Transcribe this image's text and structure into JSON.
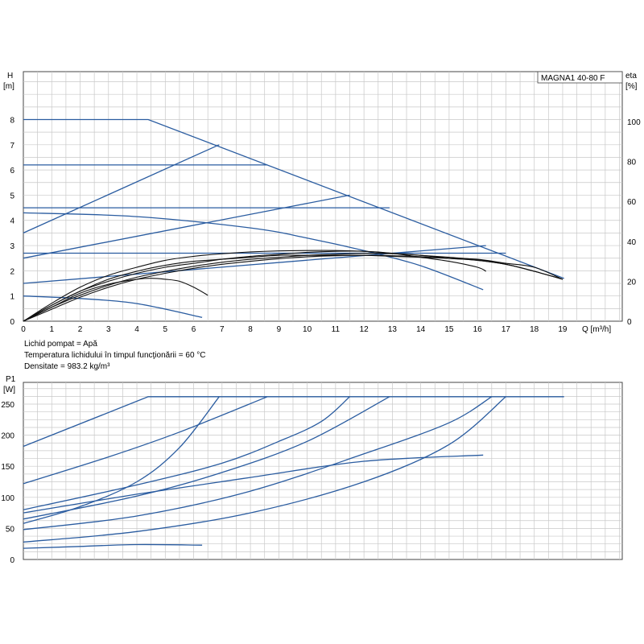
{
  "chart_data": [
    {
      "type": "line",
      "title": "MAGNA1 40-80 F",
      "xlabel": "Q [m³/h]",
      "ylabel_line1": "H",
      "ylabel_line2": "[m]",
      "y2label_line1": "eta",
      "y2label_line2": "[%]",
      "xlim": [
        0,
        21.1
      ],
      "ylim": [
        0,
        9.9
      ],
      "y2lim": [
        0,
        125
      ],
      "x_ticks": [
        0,
        1,
        2,
        3,
        4,
        5,
        6,
        7,
        8,
        9,
        10,
        11,
        12,
        13,
        14,
        15,
        16,
        17,
        18,
        19
      ],
      "y_ticks": [
        0,
        1,
        2,
        3,
        4,
        5,
        6,
        7,
        8
      ],
      "y2_ticks": [
        0,
        20,
        40,
        60,
        80,
        100
      ],
      "grid": true,
      "notes": [
        "Lichid pompat = Apă",
        "Temperatura lichidului în timpul funcţionării = 60 °C",
        "Densitate = 983.2 kg/m³"
      ],
      "head_curves": [
        {
          "color": "#2a5ca0",
          "points": [
            [
              0,
              8.0
            ],
            [
              4.4,
              8.0
            ],
            [
              19.05,
              1.7
            ]
          ]
        },
        {
          "color": "#2a5ca0",
          "points": [
            [
              0,
              6.2
            ],
            [
              8.6,
              6.2
            ]
          ]
        },
        {
          "color": "#2a5ca0",
          "points": [
            [
              0,
              4.5
            ],
            [
              12.9,
              4.5
            ]
          ]
        },
        {
          "color": "#2a5ca0",
          "points": [
            [
              0,
              2.7
            ],
            [
              17.0,
              2.7
            ]
          ]
        },
        {
          "color": "#2a5ca0",
          "points": [
            [
              0,
              3.5
            ],
            [
              6.9,
              7.0
            ]
          ]
        },
        {
          "color": "#2a5ca0",
          "points": [
            [
              0,
              2.5
            ],
            [
              11.5,
              5.0
            ]
          ]
        },
        {
          "color": "#2a5ca0",
          "points": [
            [
              0,
              1.5
            ],
            [
              16.3,
              3.0
            ]
          ]
        },
        {
          "color": "#2a5ca0",
          "points": [
            [
              0,
              4.3
            ],
            [
              4,
              4.15
            ],
            [
              8,
              3.7
            ],
            [
              10,
              3.3
            ],
            [
              12,
              2.8
            ],
            [
              14,
              2.2
            ],
            [
              16.2,
              1.25
            ]
          ]
        },
        {
          "color": "#2a5ca0",
          "points": [
            [
              0,
              1.0
            ],
            [
              2,
              0.9
            ],
            [
              4,
              0.7
            ],
            [
              6.3,
              0.15
            ]
          ]
        }
      ],
      "eta_curves": [
        {
          "color": "#111111",
          "points": [
            [
              0,
              0
            ],
            [
              1,
              8
            ],
            [
              2,
              15
            ],
            [
              3,
              21
            ],
            [
              4,
              25
            ],
            [
              5,
              28
            ],
            [
              6,
              30
            ],
            [
              7,
              31
            ],
            [
              8,
              32
            ],
            [
              9,
              33
            ],
            [
              10,
              33
            ],
            [
              11,
              33
            ],
            [
              12,
              33
            ],
            [
              13,
              32.5
            ],
            [
              14,
              32
            ],
            [
              15,
              31.5
            ],
            [
              16,
              31
            ],
            [
              17,
              29
            ],
            [
              18,
              27
            ],
            [
              19,
              21
            ]
          ]
        },
        {
          "color": "#111111",
          "points": [
            [
              0,
              0
            ],
            [
              1,
              8
            ],
            [
              2,
              15
            ],
            [
              3,
              20
            ],
            [
              4,
              24
            ],
            [
              5,
              27
            ],
            [
              6,
              29
            ],
            [
              7,
              31
            ],
            [
              8,
              32.5
            ],
            [
              9,
              33.5
            ],
            [
              10,
              34.5
            ],
            [
              11,
              35
            ],
            [
              12,
              35
            ],
            [
              13,
              34
            ],
            [
              14,
              32
            ],
            [
              15,
              30
            ],
            [
              16,
              27
            ],
            [
              16.3,
              25
            ]
          ]
        },
        {
          "color": "#111111",
          "points": [
            [
              0,
              0
            ],
            [
              1,
              9
            ],
            [
              2,
              17
            ],
            [
              3,
              23
            ],
            [
              4,
              27
            ],
            [
              5,
              30.5
            ],
            [
              6,
              32.5
            ],
            [
              7,
              33.8
            ],
            [
              8,
              34.7
            ],
            [
              9,
              35.2
            ],
            [
              10,
              35.4
            ],
            [
              11,
              35.4
            ],
            [
              12,
              35
            ],
            [
              13,
              34
            ],
            [
              14,
              33
            ],
            [
              15,
              31.5
            ],
            [
              16,
              30.5
            ],
            [
              17,
              28.5
            ],
            [
              18,
              25
            ],
            [
              19,
              21
            ]
          ]
        },
        {
          "color": "#111111",
          "points": [
            [
              0,
              0
            ],
            [
              1,
              7
            ],
            [
              2,
              13
            ],
            [
              3,
              18
            ],
            [
              4,
              22
            ],
            [
              5,
              25
            ],
            [
              6,
              27.5
            ],
            [
              7,
              29.5
            ],
            [
              8,
              31
            ],
            [
              9,
              32
            ],
            [
              10,
              33
            ],
            [
              11,
              33.5
            ],
            [
              12,
              34
            ],
            [
              13,
              33.8
            ],
            [
              14,
              33
            ],
            [
              15,
              32
            ],
            [
              16,
              30.8
            ],
            [
              17,
              28.5
            ],
            [
              18,
              25
            ],
            [
              19,
              21
            ]
          ]
        },
        {
          "color": "#111111",
          "points": [
            [
              0,
              0
            ],
            [
              1,
              6
            ],
            [
              2,
              12
            ],
            [
              3,
              17
            ],
            [
              4,
              21
            ],
            [
              5,
              24
            ],
            [
              6,
              26.5
            ],
            [
              7,
              28.5
            ],
            [
              8,
              30
            ],
            [
              9,
              31.3
            ],
            [
              10,
              32.3
            ],
            [
              11,
              32.8
            ],
            [
              12,
              33
            ],
            [
              13,
              32.8
            ],
            [
              14,
              32.3
            ],
            [
              15,
              31.5
            ],
            [
              16,
              30.5
            ],
            [
              17,
              28.5
            ],
            [
              18,
              25
            ],
            [
              19,
              21
            ]
          ]
        },
        {
          "color": "#111111",
          "points": [
            [
              0,
              0
            ],
            [
              1,
              7
            ],
            [
              2,
              14
            ],
            [
              3,
              18.5
            ],
            [
              4,
              21
            ],
            [
              4.5,
              21.5
            ],
            [
              5,
              21
            ],
            [
              5.5,
              20
            ],
            [
              6,
              17
            ],
            [
              6.5,
              13
            ]
          ]
        }
      ]
    },
    {
      "type": "line",
      "title": "",
      "xlabel": "",
      "ylabel_line1": "P1",
      "ylabel_line2": "[W]",
      "xlim": [
        0,
        21.1
      ],
      "ylim": [
        0,
        285
      ],
      "y_ticks": [
        0,
        50,
        100,
        150,
        200,
        250
      ],
      "grid": true,
      "power_curves": [
        {
          "color": "#2a5ca0",
          "points": [
            [
              0,
              182
            ],
            [
              4.4,
              262
            ],
            [
              19.05,
              262
            ]
          ]
        },
        {
          "color": "#2a5ca0",
          "points": [
            [
              0,
              122
            ],
            [
              3,
              165
            ],
            [
              5.5,
              205
            ],
            [
              8.6,
              262
            ]
          ]
        },
        {
          "color": "#2a5ca0",
          "points": [
            [
              0,
              58
            ],
            [
              2,
              85
            ],
            [
              4,
              125
            ],
            [
              5.5,
              180
            ],
            [
              6.9,
              262
            ]
          ]
        },
        {
          "color": "#2a5ca0",
          "points": [
            [
              0,
              80
            ],
            [
              4,
              120
            ],
            [
              7,
              155
            ],
            [
              9,
              190
            ],
            [
              10.5,
              222
            ],
            [
              11.5,
              262
            ]
          ]
        },
        {
          "color": "#2a5ca0",
          "points": [
            [
              0,
              65
            ],
            [
              4,
              102
            ],
            [
              7,
              140
            ],
            [
              10,
              190
            ],
            [
              12.9,
              262
            ]
          ]
        },
        {
          "color": "#2a5ca0",
          "points": [
            [
              0,
              48
            ],
            [
              4,
              70
            ],
            [
              8,
              110
            ],
            [
              12,
              170
            ],
            [
              15,
              220
            ],
            [
              16.5,
              262
            ]
          ]
        },
        {
          "color": "#2a5ca0",
          "points": [
            [
              0,
              28
            ],
            [
              4,
              45
            ],
            [
              8,
              75
            ],
            [
              12,
              125
            ],
            [
              15,
              185
            ],
            [
              17.0,
              262
            ]
          ]
        },
        {
          "color": "#2a5ca0",
          "points": [
            [
              0,
              75
            ],
            [
              4,
              105
            ],
            [
              8,
              132
            ],
            [
              12,
              158
            ],
            [
              16.2,
              168
            ]
          ]
        },
        {
          "color": "#2a5ca0",
          "points": [
            [
              0,
              18
            ],
            [
              2,
              21
            ],
            [
              4,
              24
            ],
            [
              6.3,
              23
            ]
          ]
        }
      ]
    }
  ]
}
